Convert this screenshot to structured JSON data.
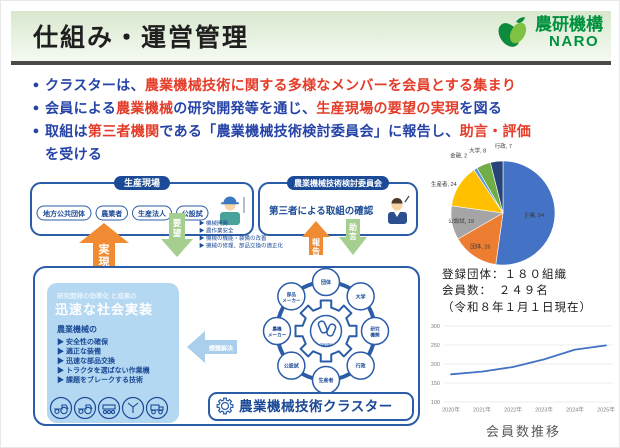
{
  "palette": {
    "blue": "#2644a7",
    "red": "#e43c28",
    "naro_green": "#00913f",
    "diagram_blue": "#2b5ca8",
    "dark_blue": "#1b4a96",
    "orange": "#f18b33",
    "green": "#a5cf8e",
    "light_blue_box": "#b4d8f1",
    "chevron": "#a9cfec",
    "axis_text": "#7f7f7f",
    "grid": "#d9d9d9"
  },
  "header": {
    "title": "仕組み・運営管理",
    "logo": {
      "org": "農研機構",
      "name": "NARO"
    }
  },
  "bullets": [
    {
      "segments": [
        {
          "t": "クラスターは、",
          "c": "blue"
        },
        {
          "t": "農業機械技術に関する多様なメンバーを会員とする集まり",
          "c": "red"
        }
      ]
    },
    {
      "segments": [
        {
          "t": "会員による",
          "c": "blue"
        },
        {
          "t": "農業機械",
          "c": "red"
        },
        {
          "t": "の研究開発等を通じ、",
          "c": "blue"
        },
        {
          "t": "生産現場の要望の実現",
          "c": "red"
        },
        {
          "t": "を図る",
          "c": "blue"
        }
      ]
    },
    {
      "segments": [
        {
          "t": "取組は",
          "c": "blue"
        },
        {
          "t": "第三者機関",
          "c": "red"
        },
        {
          "t": "である「農業機械技術検討委員会」に報告し、",
          "c": "blue"
        },
        {
          "t": "助言・評価",
          "c": "red"
        },
        {
          "t": "を受ける",
          "c": "blue"
        }
      ]
    }
  ],
  "diagram": {
    "production_site": {
      "title": "生産現場",
      "pills": [
        "地方公共団体",
        "農業者",
        "生産法人",
        "公設試"
      ]
    },
    "committee": {
      "title": "農業機械技術検討委員会",
      "body": "第三者による取組の確認"
    },
    "arrow_realize": "実現",
    "arrow_request": "要望",
    "arrow_report": "報告",
    "arrow_advice": "助言",
    "arrow_solve": "課題解決",
    "request_items": [
      "機械開発",
      "農作業安全",
      "機械の機能・装備の改善",
      "機械の修理、部品交換の適正化"
    ],
    "outcome_box": {
      "subtitle": "研究開発の効率化 と成果の",
      "title": "迅速な社会実装",
      "lead": "農業機械の",
      "items": [
        "安全性の確保",
        "適正な装備",
        "迅速な部品交換",
        "トラクタを選ばない作業機",
        "課題をブレークする技術"
      ]
    },
    "cluster": {
      "center_label": "cluster",
      "members": [
        [
          "農機",
          "メーカー"
        ],
        [
          "部品",
          "メーカー"
        ],
        [
          "団体"
        ],
        [
          "大学"
        ],
        [
          "研究",
          "機関"
        ],
        [
          "行政"
        ],
        [
          "生産者"
        ],
        [
          "公設試"
        ]
      ],
      "footer": "農業機械技術クラスター"
    }
  },
  "stats": {
    "line1": "登録団体：１８０組織",
    "line2": "会員数：　２４９名",
    "line3": "（令和８年１月１日現在）"
  },
  "chart_data": [
    {
      "type": "pie",
      "labels": [
        "企業",
        "団体",
        "公設試",
        "生産者",
        "金融",
        "大学",
        "行政"
      ],
      "values": [
        94,
        26,
        19,
        24,
        2,
        8,
        7
      ],
      "data_labels": [
        "企業, 94",
        "団体, 26",
        "公設試, 19",
        "生産者, 24",
        "金融, 2",
        "大学, 8",
        "行政, 7"
      ],
      "colors": [
        "#4472c4",
        "#ed7d31",
        "#a5a5a5",
        "#ffc000",
        "#5b9bd5",
        "#70ad47",
        "#264478"
      ],
      "start_angle_deg": -90,
      "direction": "clockwise",
      "total": 180,
      "legend": "none"
    },
    {
      "type": "line",
      "title": "会員数推移",
      "x": [
        "2020年",
        "2021年",
        "2022年",
        "2023年",
        "2024年",
        "2025年"
      ],
      "values": [
        173,
        180,
        192,
        212,
        238,
        249
      ],
      "ylim": [
        100,
        300
      ],
      "yticks": [
        100,
        150,
        200,
        250,
        300
      ],
      "line_color": "#4472c4",
      "grid": true
    }
  ]
}
